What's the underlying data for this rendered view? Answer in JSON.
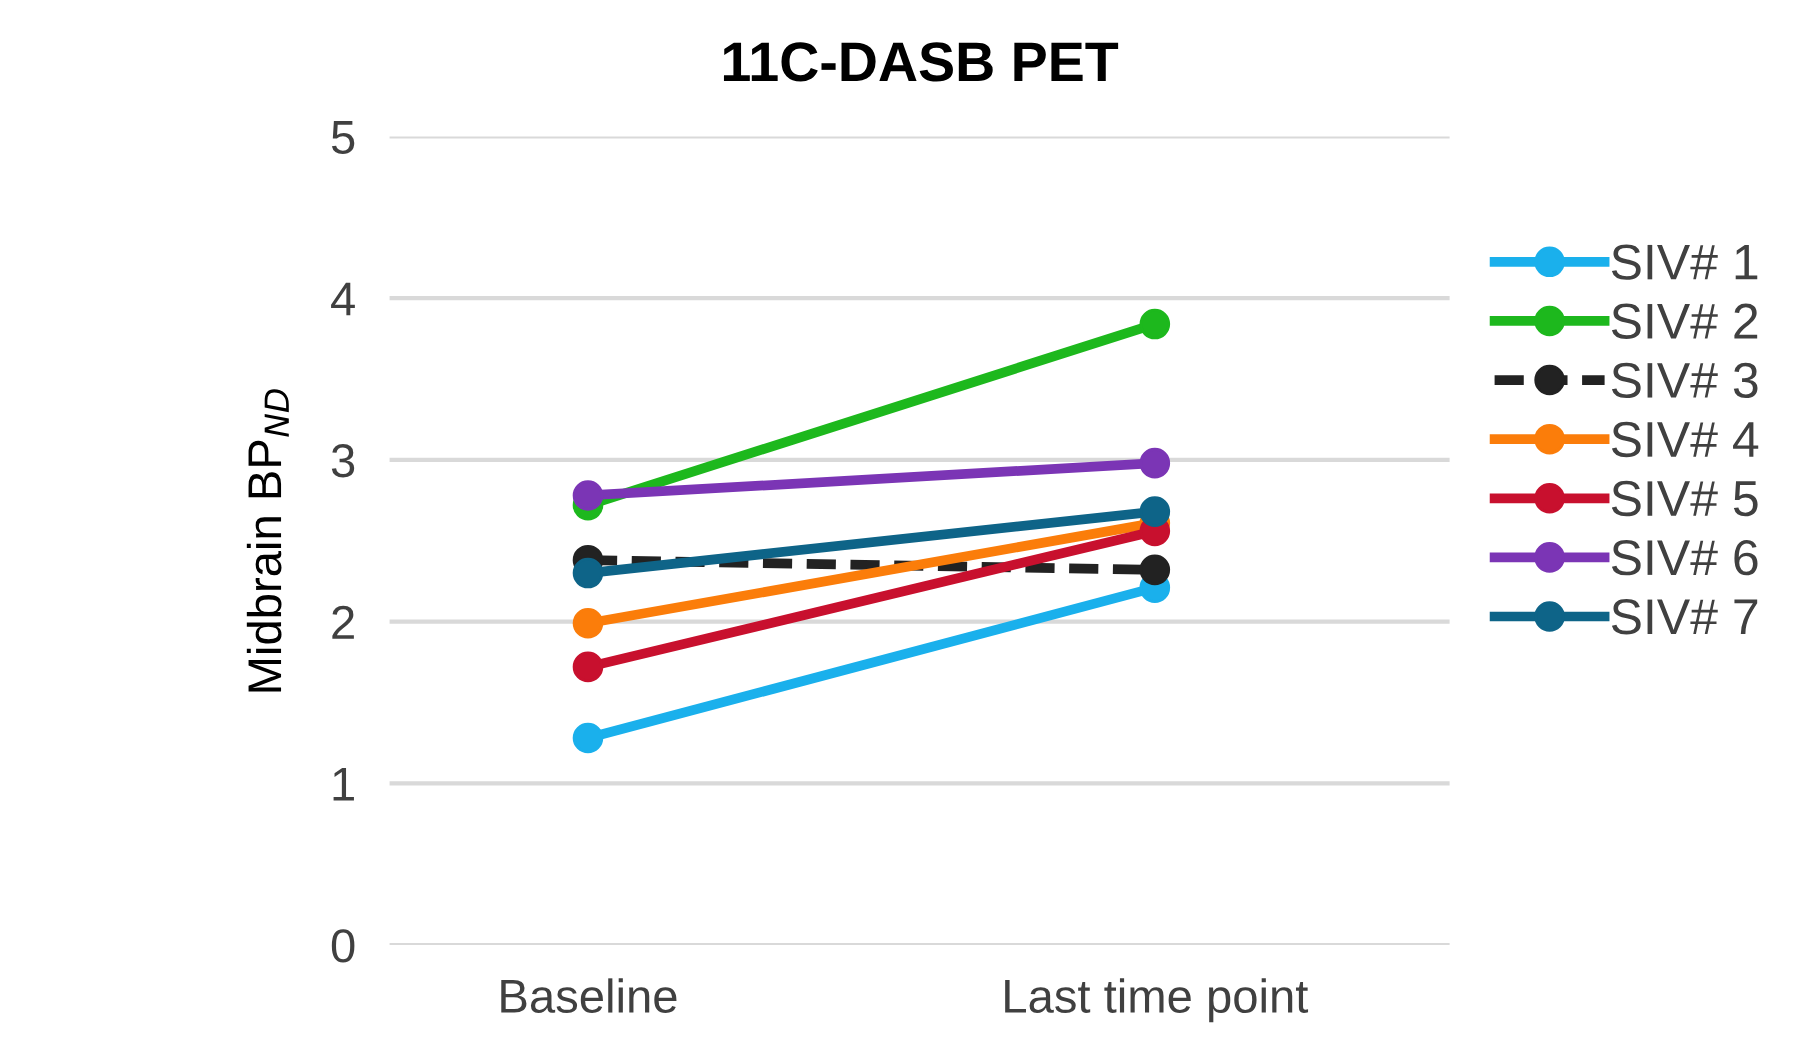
{
  "chart_data": {
    "type": "line",
    "title": "11C-DASB PET",
    "ylabel": "Midbrain BP$_{ND}$",
    "categories": [
      "Baseline",
      "Last time point"
    ],
    "series": [
      {
        "name": "SIV# 1",
        "color": "#1ab0ec",
        "values": [
          1.28,
          2.21
        ]
      },
      {
        "name": "SIV# 2",
        "color": "#1db81d",
        "values": [
          2.72,
          3.84
        ]
      },
      {
        "name": "SIV# 3",
        "color": "#222222",
        "values": [
          2.38,
          2.32
        ],
        "line_style": "dashed"
      },
      {
        "name": "SIV# 4",
        "color": "#fb7d0a",
        "values": [
          1.99,
          2.61
        ]
      },
      {
        "name": "SIV# 5",
        "color": "#c8102e",
        "values": [
          1.72,
          2.56
        ]
      },
      {
        "name": "SIV# 6",
        "color": "#7b35b5",
        "values": [
          2.78,
          2.98
        ]
      },
      {
        "name": "SIV# 7",
        "color": "#0e6488",
        "values": [
          2.3,
          2.68
        ]
      }
    ],
    "ylim": [
      0,
      5
    ],
    "yticks": [
      0,
      1,
      2,
      3,
      4,
      5
    ],
    "grid": "y",
    "legend": "right",
    "marker": "circle",
    "line_style": "solid"
  }
}
